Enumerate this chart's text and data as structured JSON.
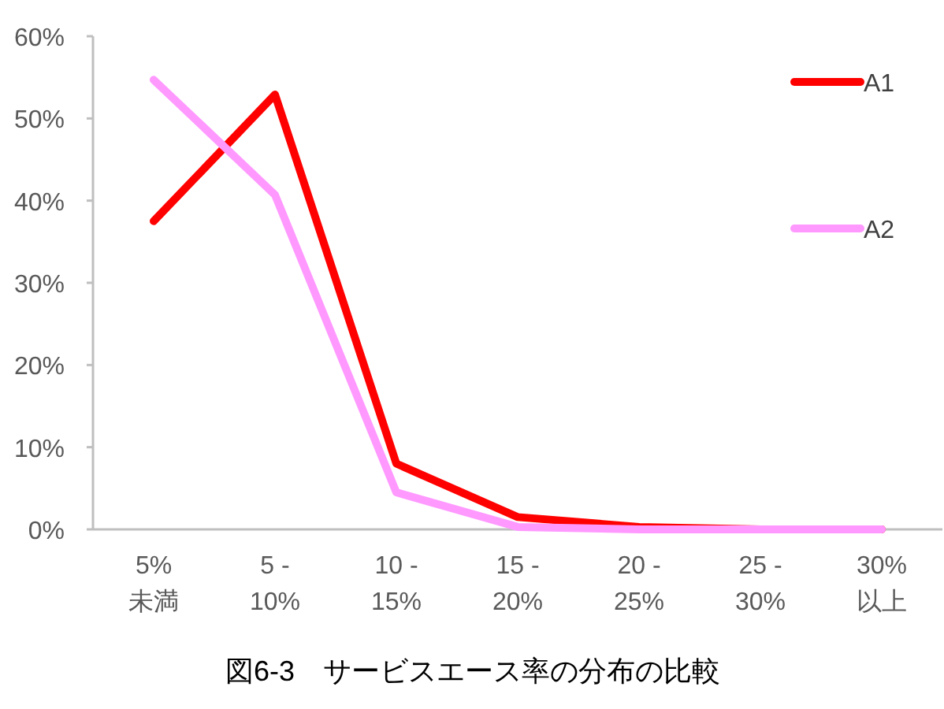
{
  "chart_data": {
    "type": "line",
    "title": "図6-3　サービスエース率の分布の比較",
    "categories": [
      "5%\n未満",
      "5 -\n10%",
      "10 -\n15%",
      "15 -\n20%",
      "20 -\n25%",
      "25 -\n30%",
      "30%\n以上"
    ],
    "series": [
      {
        "name": "A1",
        "color": "#ff0000",
        "values": [
          37.5,
          52.9,
          8.0,
          1.5,
          0.3,
          0,
          0
        ]
      },
      {
        "name": "A2",
        "color": "#ff99ff",
        "values": [
          54.7,
          40.7,
          4.5,
          0.3,
          0,
          0,
          0
        ]
      }
    ],
    "ylim": [
      0,
      60
    ],
    "yticks": [
      {
        "value": 0,
        "label": "0%"
      },
      {
        "value": 10,
        "label": "10%"
      },
      {
        "value": 20,
        "label": "20%"
      },
      {
        "value": 30,
        "label": "30%"
      },
      {
        "value": 40,
        "label": "40%"
      },
      {
        "value": 50,
        "label": "50%"
      },
      {
        "value": 60,
        "label": "60%"
      }
    ],
    "legend": "top right"
  }
}
